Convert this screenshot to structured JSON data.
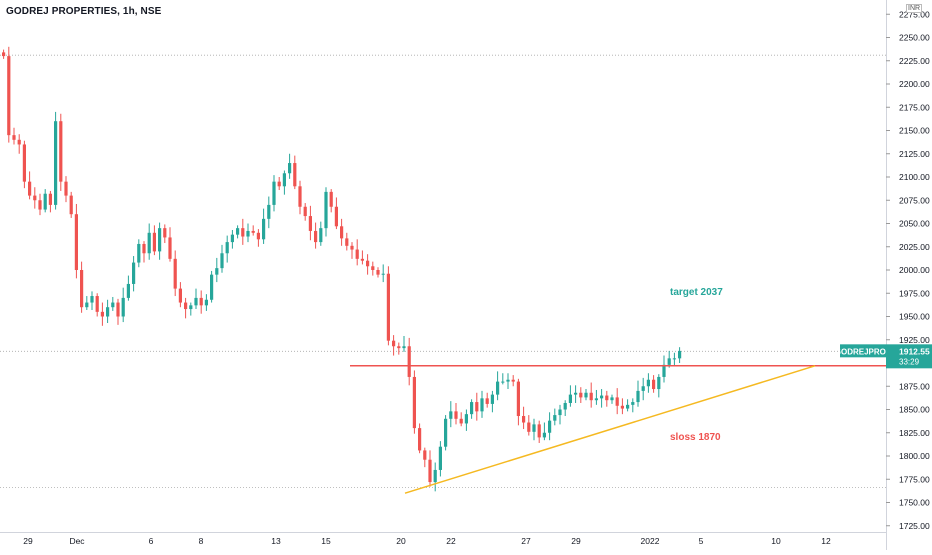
{
  "header": {
    "title": "GODREJ PROPERTIES, 1h, NSE",
    "currency": "INR"
  },
  "colors": {
    "up": "#26a69a",
    "down": "#ef5350",
    "resistance": "#ef5350",
    "trendline": "#f5b921",
    "target_text": "#26a69a",
    "sloss_text": "#ef5350",
    "grid": "#aaaaaa"
  },
  "chart_data": {
    "type": "candlestick",
    "symbol": "GODREJPROP",
    "timeframe": "1h",
    "exchange": "NSE",
    "price_label": {
      "symbol": "GODREJPROP",
      "price": "1912.55",
      "countdown": "33:29"
    },
    "y_ticks": [
      "2275.00",
      "2250.00",
      "2225.00",
      "2200.00",
      "2175.00",
      "2150.00",
      "2125.00",
      "2100.00",
      "2075.00",
      "2050.00",
      "2025.00",
      "2000.00",
      "1975.00",
      "1950.00",
      "1925.00",
      "1900.00",
      "1875.00",
      "1850.00",
      "1825.00",
      "1800.00",
      "1775.00",
      "1750.00",
      "1725.00"
    ],
    "ylim": [
      1715,
      2285
    ],
    "x_ticks": [
      "29",
      "Dec",
      "6",
      "8",
      "13",
      "15",
      "20",
      "22",
      "27",
      "29",
      "2022",
      "5",
      "10",
      "12"
    ],
    "dotted_levels": [
      2231,
      1912.55,
      1766
    ],
    "annotations": {
      "target": "target 2037",
      "sloss": "sloss 1870"
    },
    "resistance_level": 1897,
    "trendline": {
      "start": 1760,
      "end": 1897
    },
    "closes": [
      2230,
      2145,
      2140,
      2135,
      2095,
      2080,
      2075,
      2065,
      2082,
      2070,
      2160,
      2095,
      2080,
      2060,
      2000,
      1960,
      1965,
      1972,
      1955,
      1950,
      1960,
      1965,
      1950,
      1970,
      1985,
      2008,
      2028,
      2018,
      2040,
      2020,
      2045,
      2035,
      2012,
      1980,
      1965,
      1958,
      1962,
      1970,
      1962,
      1968,
      1995,
      2002,
      2018,
      2030,
      2038,
      2045,
      2036,
      2042,
      2040,
      2033,
      2055,
      2070,
      2095,
      2090,
      2104,
      2115,
      2090,
      2068,
      2058,
      2042,
      2030,
      2045,
      2084,
      2068,
      2047,
      2034,
      2026,
      2022,
      2012,
      2010,
      2004,
      2000,
      1995,
      1996,
      1924,
      1918,
      1916,
      1918,
      1885,
      1830,
      1806,
      1796,
      1772,
      1785,
      1810,
      1840,
      1848,
      1840,
      1835,
      1845,
      1858,
      1848,
      1862,
      1856,
      1866,
      1880,
      1880,
      1882,
      1880,
      1843,
      1836,
      1826,
      1834,
      1820,
      1825,
      1838,
      1844,
      1850,
      1857,
      1866,
      1868,
      1863,
      1868,
      1860,
      1862,
      1865,
      1860,
      1863,
      1854,
      1851,
      1855,
      1858,
      1870,
      1875,
      1882,
      1872,
      1885,
      1898,
      1905,
      1905,
      1913
    ]
  }
}
